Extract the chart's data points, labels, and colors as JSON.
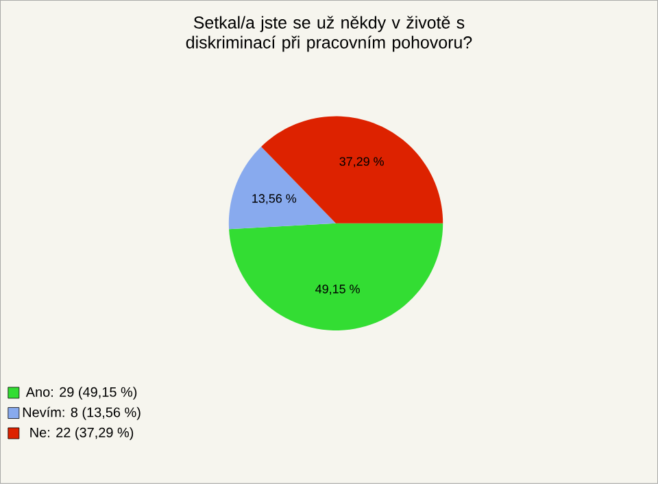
{
  "chart_data": {
    "type": "pie",
    "title": "Setkal/a jste se už někdy v životě s diskriminací při pracovním pohovoru?",
    "categories": [
      "Ano: 29 (49,15 %)",
      "Nevím: 8 (13,56 %)",
      "Ne: 22 (37,29 %)"
    ],
    "values": [
      49.15,
      13.56,
      37.29
    ],
    "colors": [
      "#33dd33",
      "#88aaee",
      "#dd2200"
    ],
    "value_labels": [
      "49,15 %",
      "13,56 %",
      "37,29 %"
    ],
    "legend": "bottom left"
  }
}
